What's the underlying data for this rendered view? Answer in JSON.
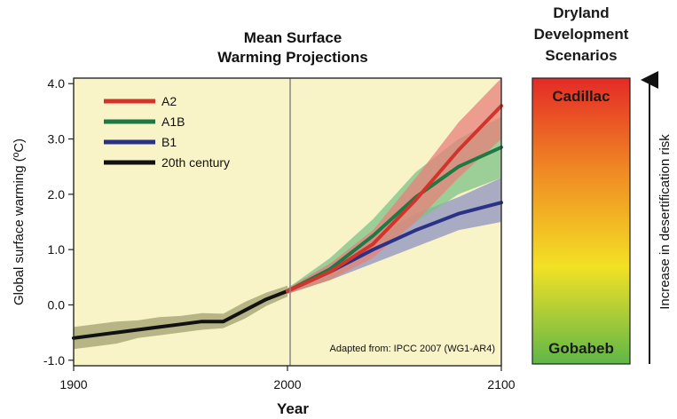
{
  "chart_data": {
    "type": "line",
    "title": "Mean Surface Warming Projections",
    "xlabel": "Year",
    "ylabel": "Global surface warming (ºC)",
    "xlim": [
      1900,
      2100
    ],
    "ylim": [
      -1.1,
      4.1
    ],
    "xticks": [
      1900,
      2000,
      2100
    ],
    "yticks": [
      -1.0,
      0.0,
      1.0,
      2.0,
      3.0,
      4.0
    ],
    "ytick_labels": [
      "-1.0",
      "0.0",
      "1.0",
      "2.0",
      "3.0",
      "4.0"
    ],
    "grid": false,
    "legend": "top-left",
    "annotation": "Adapted from: IPCC 2007 (WG1-AR4)",
    "series": [
      {
        "name": "A2",
        "color": "#d2342c",
        "band_color": "#e8807a",
        "x": [
          2000,
          2020,
          2040,
          2060,
          2080,
          2100
        ],
        "values": [
          0.25,
          0.6,
          1.1,
          1.9,
          2.8,
          3.6
        ],
        "lower": [
          0.2,
          0.45,
          0.85,
          1.5,
          2.3,
          3.0
        ],
        "upper": [
          0.3,
          0.75,
          1.35,
          2.3,
          3.3,
          4.1
        ]
      },
      {
        "name": "A1B",
        "color": "#1e7a45",
        "band_color": "#7cc287",
        "x": [
          2000,
          2020,
          2040,
          2060,
          2080,
          2100
        ],
        "values": [
          0.25,
          0.65,
          1.25,
          1.95,
          2.5,
          2.85
        ],
        "lower": [
          0.2,
          0.45,
          0.95,
          1.5,
          2.0,
          2.3
        ],
        "upper": [
          0.3,
          0.85,
          1.55,
          2.4,
          3.0,
          3.4
        ]
      },
      {
        "name": "B1",
        "color": "#2a3288",
        "band_color": "#8d93c2",
        "x": [
          2000,
          2020,
          2040,
          2060,
          2080,
          2100
        ],
        "values": [
          0.25,
          0.6,
          1.0,
          1.35,
          1.65,
          1.85
        ],
        "lower": [
          0.2,
          0.45,
          0.75,
          1.05,
          1.35,
          1.5
        ],
        "upper": [
          0.3,
          0.75,
          1.2,
          1.65,
          1.95,
          2.3
        ]
      },
      {
        "name": "20th century",
        "color": "#111111",
        "band_color": "#a0a070",
        "x": [
          1900,
          1910,
          1920,
          1930,
          1940,
          1950,
          1960,
          1970,
          1980,
          1990,
          2000
        ],
        "values": [
          -0.6,
          -0.55,
          -0.5,
          -0.45,
          -0.4,
          -0.35,
          -0.3,
          -0.3,
          -0.1,
          0.1,
          0.25
        ],
        "lower": [
          -0.8,
          -0.75,
          -0.7,
          -0.6,
          -0.55,
          -0.5,
          -0.45,
          -0.42,
          -0.25,
          -0.02,
          0.15
        ],
        "upper": [
          -0.4,
          -0.35,
          -0.3,
          -0.28,
          -0.22,
          -0.2,
          -0.15,
          -0.16,
          0.05,
          0.22,
          0.35
        ]
      }
    ]
  },
  "scenarios": {
    "title_lines": [
      "Dryland",
      "Development",
      "Scenarios"
    ],
    "top_label": "Cadillac",
    "bottom_label": "Gobabeb",
    "arrow_label": "Increase in desertification risk",
    "colors": {
      "top": "#e42a26",
      "upper_mid": "#f08b24",
      "mid": "#f3e125",
      "bottom": "#5fb748"
    }
  },
  "plot_background": "#f9f3c8"
}
